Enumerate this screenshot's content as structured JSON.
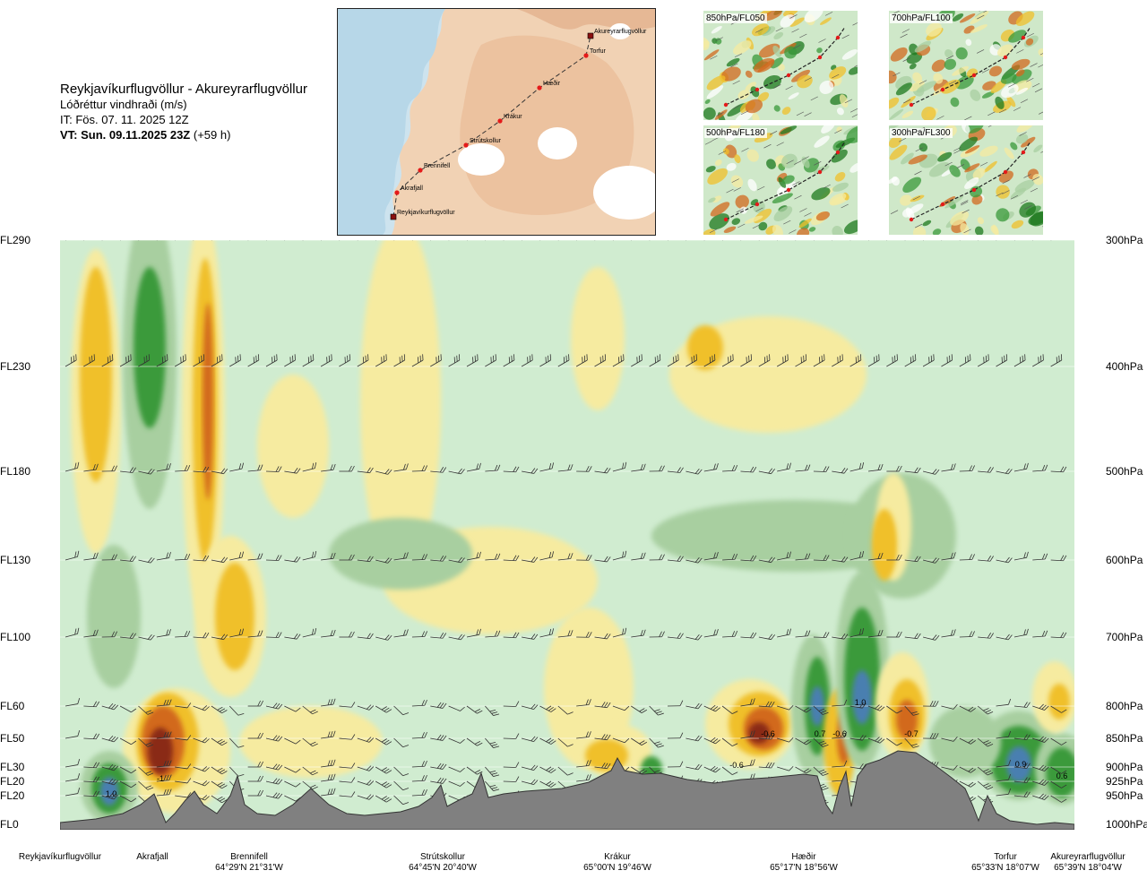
{
  "title": {
    "route": "Reykjavíkurflugvöllur - Akureyrarflugvöllur",
    "quantity": "Lóðréttur vindhraði (m/s)",
    "issue_time": "IT: Fös. 07. 11. 2025 12Z",
    "valid_time": "VT: Sun. 09.11.2025 23Z",
    "valid_offset": "(+59 h)"
  },
  "route_map": {
    "points": [
      "Akureyrarflugvöllur",
      "Torfur",
      "Hæðir",
      "Krákur",
      "Strútskollur",
      "Brennifell",
      "Akrafjall",
      "Reykjavíkurflugvöllur"
    ]
  },
  "level_maps": [
    {
      "label": "850hPa/FL050"
    },
    {
      "label": "700hPa/FL100"
    },
    {
      "label": "500hPa/FL180"
    },
    {
      "label": "300hPa/FL300"
    }
  ],
  "chart_data": {
    "type": "heatmap",
    "title": "Lóðréttur vindhraði (m/s)",
    "x_axis": {
      "waypoints": [
        {
          "name": "Reykjavíkurflugvöllur",
          "coord": ""
        },
        {
          "name": "Akrafjall",
          "coord": ""
        },
        {
          "name": "Brennifell",
          "coord": "64°29'N 21°31'W"
        },
        {
          "name": "Strútskollur",
          "coord": "64°45'N 20°40'W"
        },
        {
          "name": "Krákur",
          "coord": "65°00'N 19°46'W"
        },
        {
          "name": "Hæðir",
          "coord": "65°17'N 18°56'W"
        },
        {
          "name": "Torfur",
          "coord": "65°33'N 18°07'W"
        },
        {
          "name": "Akureyrarflugvöllur",
          "coord": "65°39'N 18°04'W"
        }
      ]
    },
    "y_axis_left": [
      "FL290",
      "FL230",
      "FL180",
      "FL130",
      "FL100",
      "FL60",
      "FL50",
      "FL30",
      "FL20",
      "FL20",
      "FL0"
    ],
    "y_axis_right": [
      "300hPa",
      "400hPa",
      "500hPa",
      "600hPa",
      "700hPa",
      "800hPa",
      "850hPa",
      "900hPa",
      "925hPa",
      "950hPa",
      "1000hPa"
    ],
    "annotations": [
      {
        "label": "1.0",
        "near": "Reykjavíkurflugvöllur",
        "level": "950hPa"
      },
      {
        "label": "-1",
        "near": "Akrafjall",
        "level": "925hPa"
      },
      {
        "label": "-0.6",
        "near": "Krákur",
        "level": "850hPa"
      },
      {
        "label": "-0.6",
        "near": "Krákur",
        "level": "900hPa"
      },
      {
        "label": "0.7",
        "near": "Hæðir",
        "level": "850hPa"
      },
      {
        "label": "-0.6",
        "near": "Hæðir",
        "level": "850hPa"
      },
      {
        "label": "1.0",
        "near": "Hæðir",
        "level": "800hPa"
      },
      {
        "label": "-0.7",
        "near": "Hæðir",
        "level": "850hPa"
      },
      {
        "label": "0.9",
        "near": "Torfur",
        "level": "900hPa"
      },
      {
        "label": "0.6",
        "near": "Akureyrarflugvöllur",
        "level": "925hPa"
      }
    ],
    "colors": {
      "down_strong": "#8a2a12",
      "down_med": "#d2691e",
      "down_weak": "#f0c02a",
      "down_faint": "#f6eba0",
      "neutral": "#d0ecd0",
      "up_faint": "#a8cfa0",
      "up_med": "#3a9a3a",
      "up_strong": "#1e7a1e",
      "up_max": "#4a7fb0",
      "terrain": "#808080"
    }
  }
}
